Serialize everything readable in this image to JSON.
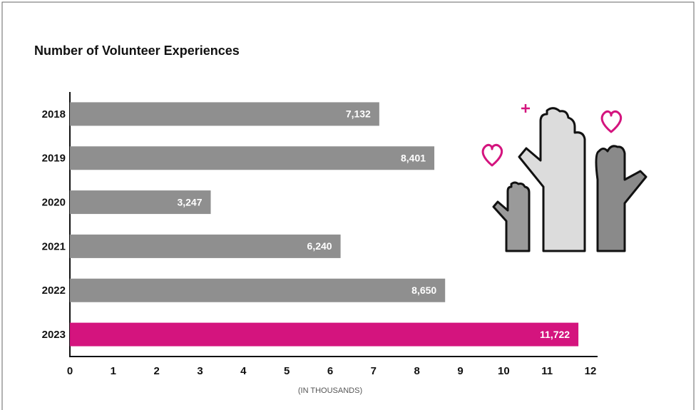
{
  "chart_data": {
    "type": "bar",
    "orientation": "horizontal",
    "title": "Number of Volunteer Experiences",
    "categories": [
      "2018",
      "2019",
      "2020",
      "2021",
      "2022",
      "2023"
    ],
    "values": [
      7.132,
      8.401,
      3.247,
      6.24,
      8.65,
      11.722
    ],
    "value_labels": [
      "7,132",
      "8,401",
      "3,247",
      "6,240",
      "8,650",
      "11,722"
    ],
    "colors": [
      "#8f8f8f",
      "#8f8f8f",
      "#8f8f8f",
      "#8f8f8f",
      "#8f8f8f",
      "#d4147e"
    ],
    "xlabel": "(IN THOUSANDS)",
    "xlim": [
      0,
      12
    ],
    "xticks": [
      0,
      1,
      2,
      3,
      4,
      5,
      6,
      7,
      8,
      9,
      10,
      11,
      12
    ],
    "grid": false
  }
}
